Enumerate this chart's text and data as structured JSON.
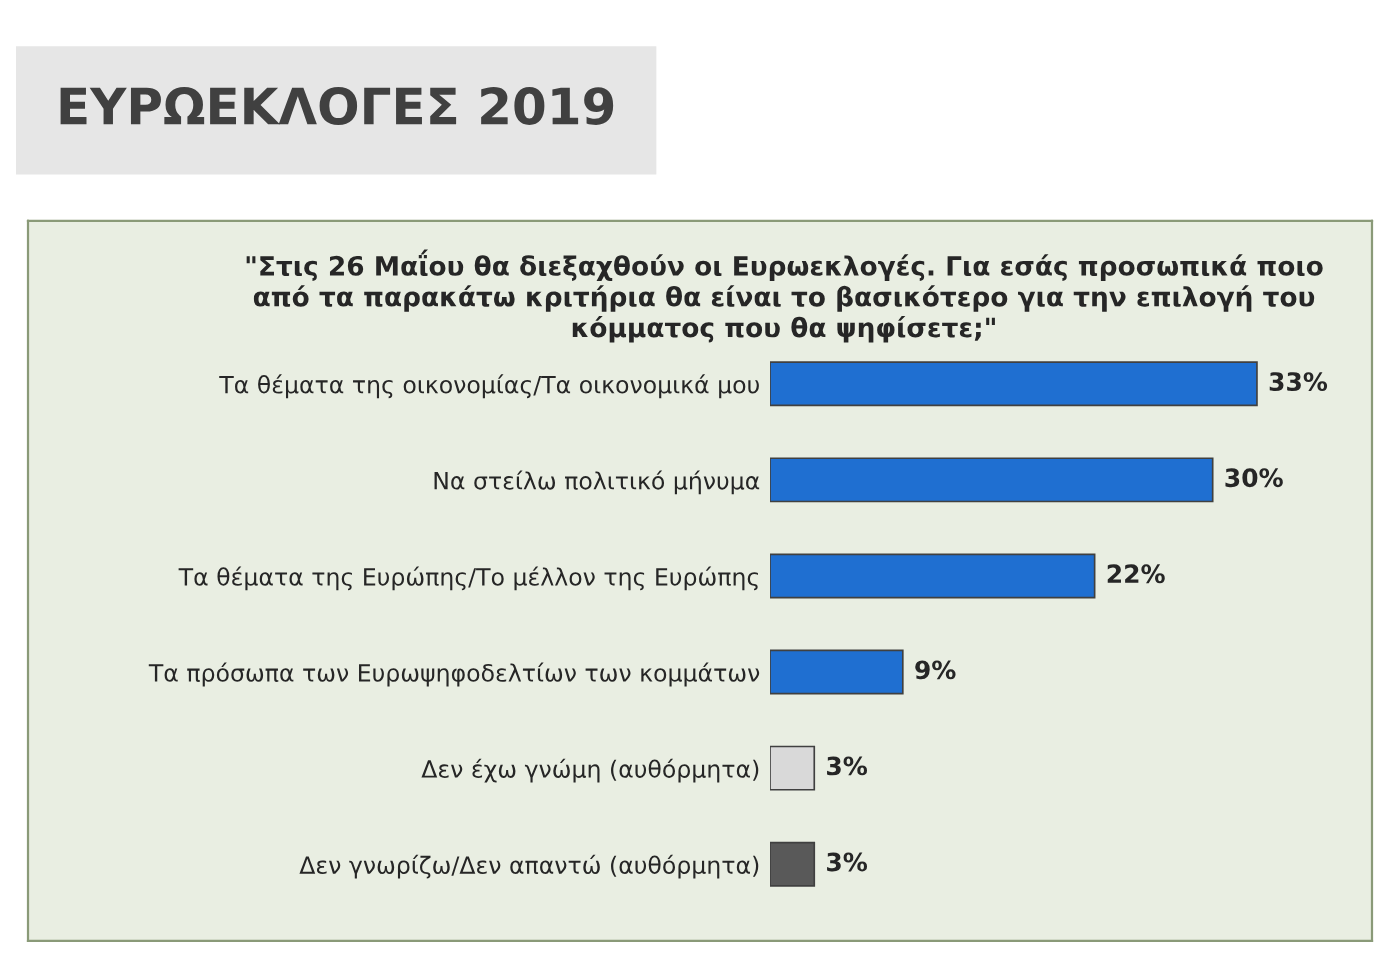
{
  "chart_data": {
    "type": "bar",
    "orientation": "horizontal",
    "title": "ΕΥΡΩΕΚΛΟΓΕΣ 2019",
    "subtitle": "\"Στις 26 Μαΐου θα διεξαχθούν οι Ευρωεκλογές. Για εσάς προσωπικά ποιο από τα παρακάτω κριτήρια θα είναι το βασικότερο για την επιλογή του κόμματος που θα ψηφίσετε;\"",
    "categories": [
      "Τα θέματα της οικονομίας/Τα οικονομικά μου",
      "Να στείλω πολιτικό μήνυμα",
      "Τα θέματα της Ευρώπης/Το μέλλον της Ευρώπης",
      "Τα πρόσωπα των Ευρωψηφοδελτίων των κομμάτων",
      "Δεν έχω γνώμη (αυθόρμητα)",
      "Δεν γνωρίζω/Δεν απαντώ (αυθόρμητα)"
    ],
    "values": [
      33,
      30,
      22,
      9,
      3,
      3
    ],
    "value_labels": [
      "33%",
      "30%",
      "22%",
      "9%",
      "3%",
      "3%"
    ],
    "colors": [
      "#1f6fd1",
      "#1f6fd1",
      "#1f6fd1",
      "#1f6fd1",
      "#d9d9d9",
      "#595959"
    ]
  }
}
